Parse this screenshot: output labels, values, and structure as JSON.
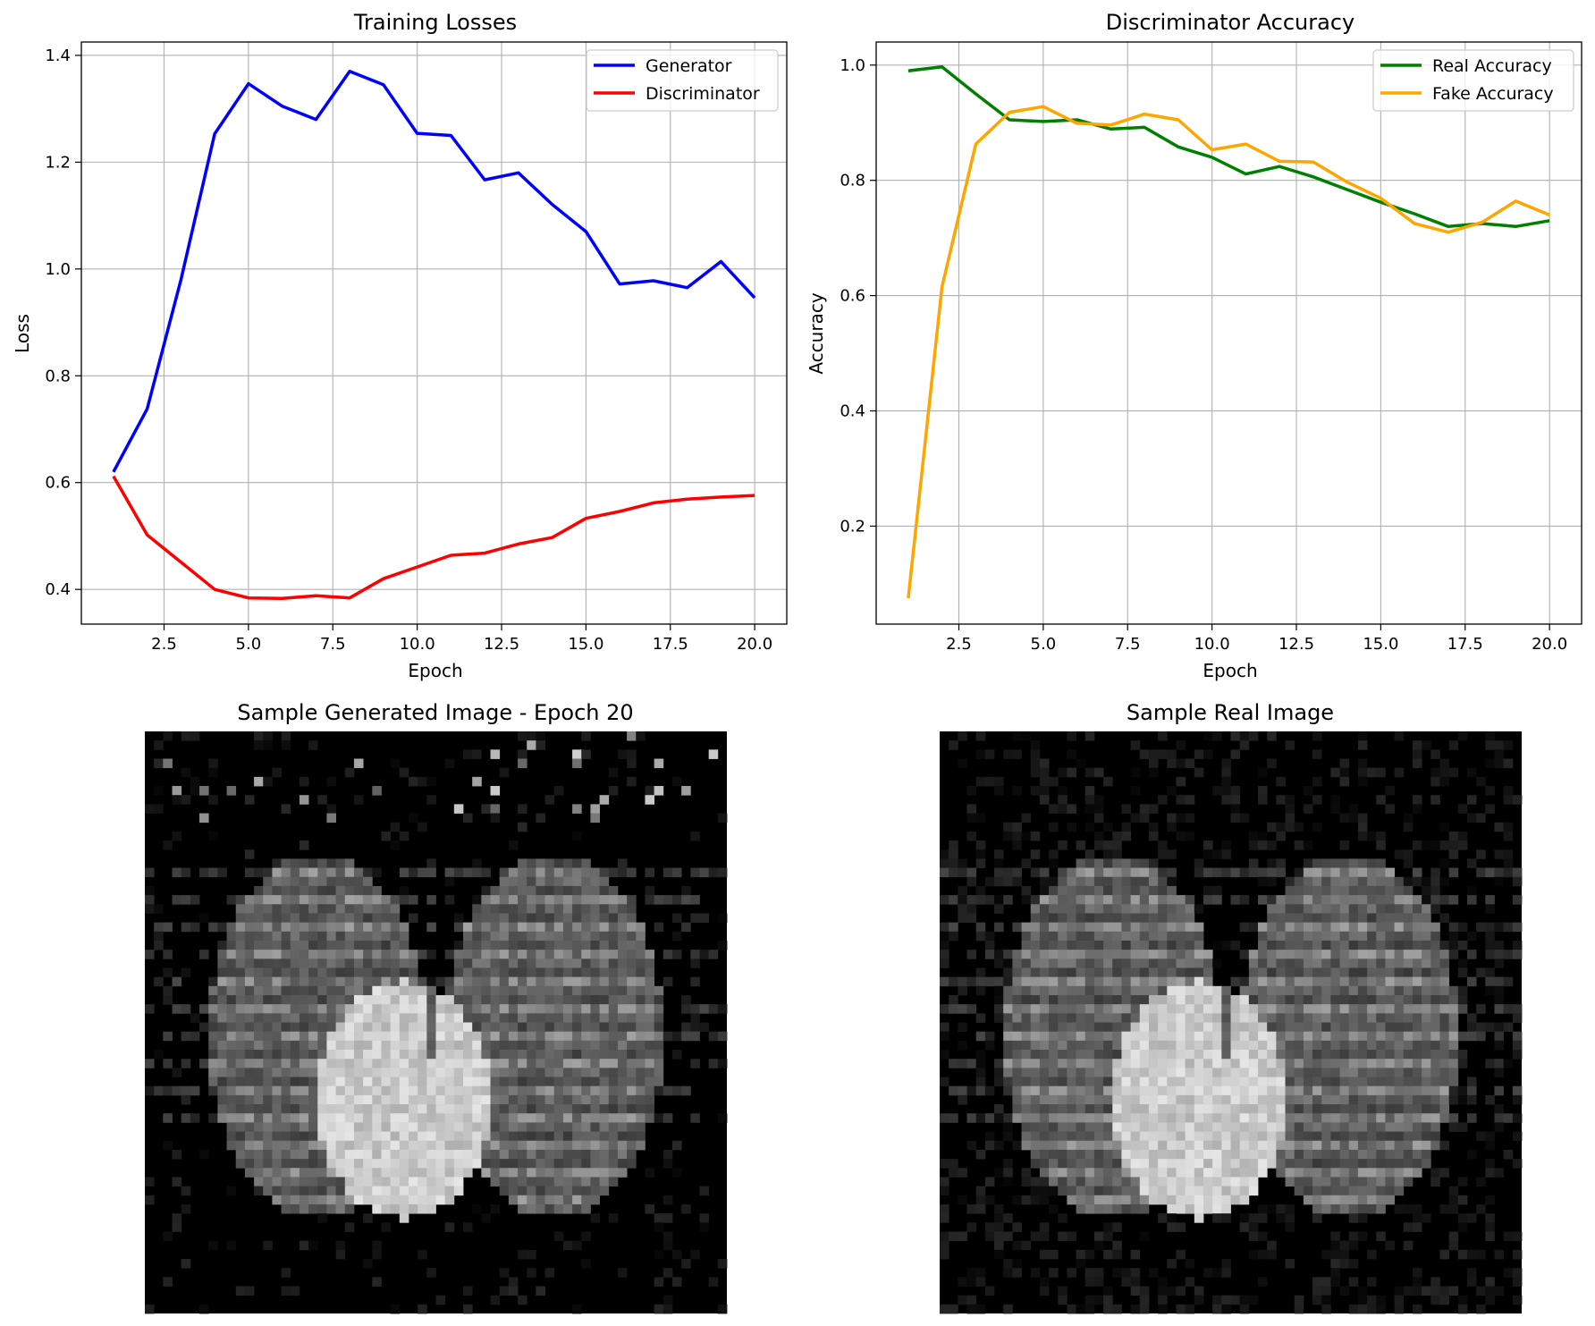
{
  "chart_data": [
    {
      "type": "line",
      "title": "Training Losses",
      "xlabel": "Epoch",
      "ylabel": "Loss",
      "xlim": [
        0.05,
        20.95
      ],
      "ylim": [
        0.335,
        1.425
      ],
      "xticks": [
        2.5,
        5.0,
        7.5,
        10.0,
        12.5,
        15.0,
        17.5,
        20.0
      ],
      "yticks": [
        0.4,
        0.6,
        0.8,
        1.0,
        1.2,
        1.4
      ],
      "grid": true,
      "legend_position": "top-right",
      "x": [
        1,
        2,
        3,
        4,
        5,
        6,
        7,
        8,
        9,
        10,
        11,
        12,
        13,
        14,
        15,
        16,
        17,
        18,
        19,
        20
      ],
      "series": [
        {
          "name": "Generator",
          "color": "#0000ff",
          "values": [
            0.62,
            0.738,
            0.98,
            1.253,
            1.347,
            1.305,
            1.28,
            1.37,
            1.345,
            1.254,
            1.25,
            1.167,
            1.18,
            1.121,
            1.07,
            0.972,
            0.978,
            0.965,
            1.014,
            0.946
          ]
        },
        {
          "name": "Discriminator",
          "color": "#ff0000",
          "values": [
            0.612,
            0.502,
            0.451,
            0.4,
            0.384,
            0.383,
            0.388,
            0.384,
            0.42,
            0.442,
            0.464,
            0.468,
            0.485,
            0.497,
            0.533,
            0.546,
            0.562,
            0.569,
            0.573,
            0.576
          ]
        }
      ]
    },
    {
      "type": "line",
      "title": "Discriminator Accuracy",
      "xlabel": "Epoch",
      "ylabel": "Accuracy",
      "xlim": [
        0.05,
        20.95
      ],
      "ylim": [
        0.03,
        1.04
      ],
      "xticks": [
        2.5,
        5.0,
        7.5,
        10.0,
        12.5,
        15.0,
        17.5,
        20.0
      ],
      "yticks": [
        0.2,
        0.4,
        0.6,
        0.8,
        1.0
      ],
      "grid": true,
      "legend_position": "top-right",
      "x": [
        1,
        2,
        3,
        4,
        5,
        6,
        7,
        8,
        9,
        10,
        11,
        12,
        13,
        14,
        15,
        16,
        17,
        18,
        19,
        20
      ],
      "series": [
        {
          "name": "Real Accuracy",
          "color": "#008000",
          "values": [
            0.99,
            0.997,
            0.95,
            0.905,
            0.902,
            0.905,
            0.889,
            0.892,
            0.858,
            0.84,
            0.811,
            0.824,
            0.806,
            0.784,
            0.762,
            0.742,
            0.72,
            0.725,
            0.72,
            0.73
          ]
        },
        {
          "name": "Fake Accuracy",
          "color": "#ffa500",
          "values": [
            0.075,
            0.615,
            0.863,
            0.918,
            0.928,
            0.899,
            0.896,
            0.915,
            0.905,
            0.853,
            0.863,
            0.833,
            0.832,
            0.797,
            0.769,
            0.725,
            0.71,
            0.727,
            0.764,
            0.74
          ]
        }
      ]
    }
  ],
  "images": [
    {
      "title": "Sample Generated Image - Epoch 20",
      "kind": "grayscale"
    },
    {
      "title": "Sample Real Image",
      "kind": "grayscale"
    }
  ]
}
